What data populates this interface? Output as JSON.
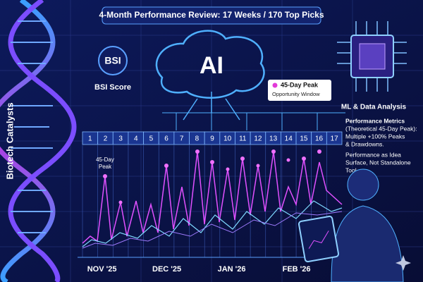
{
  "header": {
    "title": "4-Month Performance Review: 17 Weeks / 170 Top Picks"
  },
  "side_label": "Biotech Catalysts",
  "bsi": {
    "badge": "BSI",
    "caption": "BSI Score"
  },
  "brain": {
    "label": "AI"
  },
  "legend": {
    "title": "45-Day Peak",
    "caption": "Opportunity Window"
  },
  "chip": {
    "caption": "ML & Data Analysis"
  },
  "notes": {
    "heading": "Performance Metrics",
    "body": [
      "(Theoretical 45-Day Peak):",
      "Multiple +100% Peaks",
      "& Drawdowns."
    ],
    "footer": [
      "Performance as Idea",
      "Surface, Not Standalone",
      "Tool."
    ]
  },
  "annotation": [
    "45-Day",
    "Peak"
  ],
  "weeks": [
    "1",
    "2",
    "3",
    "4",
    "5",
    "6",
    "7",
    "8",
    "9",
    "10",
    "11",
    "12",
    "13",
    "14",
    "15",
    "16",
    "17"
  ],
  "months": [
    "NOV '25",
    "DEC '25",
    "JAN '26",
    "FEB '26"
  ]
}
